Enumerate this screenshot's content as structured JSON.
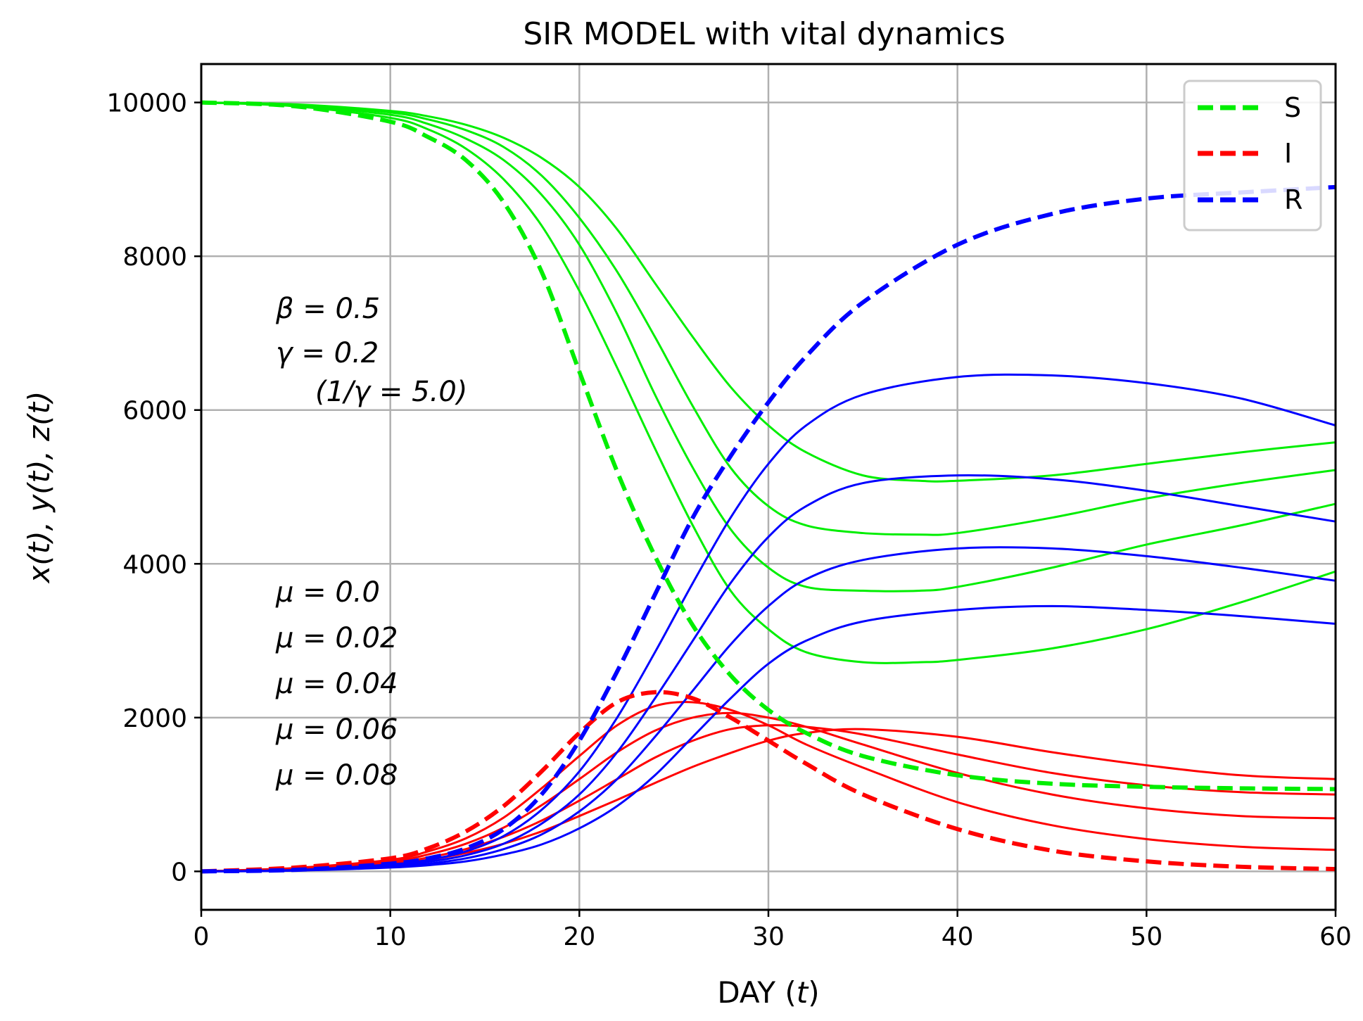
{
  "chart_data": {
    "type": "line",
    "title": "SIR MODEL with vital dynamics",
    "xlabel": "DAY (t)",
    "ylabel": "x(t), y(t), z(t)",
    "xlim": [
      0,
      60
    ],
    "ylim": [
      -500,
      10500
    ],
    "xticks": [
      0,
      10,
      20,
      30,
      40,
      50,
      60
    ],
    "yticks": [
      0,
      2000,
      4000,
      6000,
      8000,
      10000
    ],
    "grid": true,
    "legend": {
      "position": "top-right",
      "entries": [
        "S",
        "I",
        "R"
      ]
    },
    "colors": {
      "S": "#00ee00",
      "I": "#ff0000",
      "R": "#0000ff",
      "grid": "#b0b0b0"
    },
    "annotations": {
      "params": [
        "β = 0.5",
        "γ = 0.2",
        "(1/γ = 5.0)"
      ],
      "mu_values": [
        "μ = 0.0",
        "μ = 0.02",
        "μ = 0.04",
        "μ = 0.06",
        "μ = 0.08"
      ]
    },
    "series": [
      {
        "name": "S",
        "mu": 0.0,
        "style": "dashed",
        "color": "#00ee00",
        "x": [
          0,
          5,
          10,
          12,
          14,
          16,
          18,
          20,
          22,
          24,
          26,
          28,
          30,
          32,
          35,
          40,
          45,
          50,
          55,
          60
        ],
        "y": [
          10000,
          9950,
          9750,
          9550,
          9250,
          8700,
          7800,
          6500,
          5200,
          4100,
          3200,
          2550,
          2100,
          1800,
          1500,
          1250,
          1140,
          1100,
          1080,
          1070
        ]
      },
      {
        "name": "S",
        "mu": 0.02,
        "style": "solid",
        "color": "#00ee00",
        "x": [
          0,
          5,
          10,
          12,
          14,
          16,
          18,
          20,
          22,
          24,
          26,
          28,
          30,
          32,
          35,
          38,
          40,
          45,
          50,
          55,
          60
        ],
        "y": [
          10000,
          9950,
          9800,
          9650,
          9400,
          9000,
          8400,
          7550,
          6550,
          5500,
          4500,
          3650,
          3150,
          2850,
          2720,
          2720,
          2750,
          2900,
          3150,
          3500,
          3900
        ]
      },
      {
        "name": "S",
        "mu": 0.04,
        "style": "solid",
        "color": "#00ee00",
        "x": [
          0,
          5,
          10,
          12,
          14,
          16,
          18,
          20,
          22,
          24,
          26,
          28,
          30,
          32,
          35,
          38,
          40,
          45,
          50,
          55,
          60
        ],
        "y": [
          10000,
          9960,
          9840,
          9720,
          9530,
          9250,
          8800,
          8150,
          7250,
          6200,
          5250,
          4450,
          3950,
          3700,
          3650,
          3650,
          3700,
          3950,
          4250,
          4500,
          4780
        ]
      },
      {
        "name": "S",
        "mu": 0.06,
        "style": "solid",
        "color": "#00ee00",
        "x": [
          0,
          5,
          10,
          12,
          14,
          16,
          18,
          20,
          22,
          24,
          26,
          28,
          30,
          32,
          35,
          38,
          40,
          45,
          50,
          55,
          60
        ],
        "y": [
          10000,
          9970,
          9870,
          9780,
          9640,
          9420,
          9050,
          8500,
          7800,
          6950,
          6050,
          5250,
          4750,
          4500,
          4400,
          4380,
          4400,
          4600,
          4850,
          5050,
          5220
        ]
      },
      {
        "name": "S",
        "mu": 0.08,
        "style": "solid",
        "color": "#00ee00",
        "x": [
          0,
          5,
          10,
          12,
          14,
          16,
          18,
          20,
          22,
          24,
          26,
          28,
          30,
          32,
          35,
          38,
          40,
          45,
          50,
          55,
          60
        ],
        "y": [
          10000,
          9975,
          9890,
          9820,
          9710,
          9540,
          9280,
          8900,
          8350,
          7650,
          6950,
          6300,
          5800,
          5450,
          5150,
          5080,
          5080,
          5150,
          5300,
          5450,
          5580
        ]
      },
      {
        "name": "I",
        "mu": 0.0,
        "style": "dashed",
        "color": "#ff0000",
        "x": [
          0,
          5,
          10,
          12,
          14,
          16,
          18,
          20,
          22,
          24,
          26,
          28,
          30,
          32,
          35,
          40,
          45,
          50,
          55,
          60
        ],
        "y": [
          0,
          50,
          170,
          300,
          520,
          850,
          1300,
          1800,
          2200,
          2330,
          2250,
          2000,
          1700,
          1400,
          1000,
          550,
          270,
          130,
          60,
          30
        ]
      },
      {
        "name": "I",
        "mu": 0.02,
        "style": "solid",
        "color": "#ff0000",
        "x": [
          0,
          5,
          10,
          12,
          14,
          16,
          18,
          20,
          22,
          24,
          26,
          28,
          30,
          32,
          35,
          40,
          45,
          50,
          55,
          60
        ],
        "y": [
          0,
          45,
          150,
          260,
          430,
          700,
          1080,
          1500,
          1900,
          2150,
          2200,
          2100,
          1900,
          1650,
          1350,
          900,
          600,
          420,
          320,
          280
        ]
      },
      {
        "name": "I",
        "mu": 0.04,
        "style": "solid",
        "color": "#ff0000",
        "x": [
          0,
          5,
          10,
          12,
          14,
          16,
          18,
          20,
          22,
          24,
          26,
          28,
          30,
          32,
          35,
          40,
          45,
          50,
          55,
          60
        ],
        "y": [
          0,
          40,
          130,
          220,
          360,
          570,
          860,
          1200,
          1550,
          1830,
          2000,
          2060,
          2000,
          1880,
          1650,
          1280,
          1000,
          820,
          720,
          690
        ]
      },
      {
        "name": "I",
        "mu": 0.06,
        "style": "solid",
        "color": "#ff0000",
        "x": [
          0,
          5,
          10,
          12,
          14,
          16,
          18,
          20,
          22,
          24,
          26,
          28,
          30,
          32,
          35,
          40,
          45,
          50,
          55,
          60
        ],
        "y": [
          0,
          35,
          110,
          180,
          290,
          450,
          660,
          920,
          1200,
          1480,
          1700,
          1850,
          1900,
          1880,
          1780,
          1520,
          1280,
          1120,
          1030,
          1000
        ]
      },
      {
        "name": "I",
        "mu": 0.08,
        "style": "solid",
        "color": "#ff0000",
        "x": [
          0,
          5,
          10,
          12,
          14,
          16,
          18,
          20,
          22,
          24,
          26,
          28,
          30,
          32,
          35,
          40,
          45,
          50,
          55,
          60
        ],
        "y": [
          0,
          30,
          95,
          150,
          240,
          360,
          520,
          720,
          930,
          1150,
          1360,
          1540,
          1700,
          1800,
          1850,
          1750,
          1550,
          1380,
          1250,
          1200
        ]
      },
      {
        "name": "R",
        "mu": 0.0,
        "style": "dashed",
        "color": "#0000ff",
        "x": [
          0,
          5,
          10,
          12,
          14,
          16,
          18,
          20,
          22,
          24,
          26,
          28,
          30,
          32,
          35,
          40,
          45,
          50,
          55,
          60
        ],
        "y": [
          0,
          20,
          100,
          170,
          300,
          550,
          1000,
          1700,
          2600,
          3600,
          4600,
          5400,
          6100,
          6700,
          7400,
          8150,
          8550,
          8750,
          8830,
          8900
        ]
      },
      {
        "name": "R",
        "mu": 0.02,
        "style": "solid",
        "color": "#0000ff",
        "x": [
          0,
          5,
          10,
          12,
          14,
          16,
          18,
          20,
          22,
          24,
          26,
          28,
          30,
          32,
          35,
          40,
          45,
          50,
          55,
          60
        ],
        "y": [
          0,
          18,
          90,
          150,
          260,
          460,
          800,
          1300,
          2000,
          2850,
          3750,
          4600,
          5300,
          5800,
          6200,
          6430,
          6450,
          6350,
          6150,
          5800
        ]
      },
      {
        "name": "R",
        "mu": 0.04,
        "style": "solid",
        "color": "#0000ff",
        "x": [
          0,
          5,
          10,
          12,
          14,
          16,
          18,
          20,
          22,
          24,
          26,
          28,
          30,
          32,
          35,
          40,
          45,
          50,
          55,
          60
        ],
        "y": [
          0,
          15,
          75,
          125,
          210,
          360,
          620,
          1000,
          1550,
          2250,
          3000,
          3750,
          4350,
          4750,
          5050,
          5150,
          5100,
          4950,
          4750,
          4550
        ]
      },
      {
        "name": "R",
        "mu": 0.06,
        "style": "solid",
        "color": "#0000ff",
        "x": [
          0,
          5,
          10,
          12,
          14,
          16,
          18,
          20,
          22,
          24,
          26,
          28,
          30,
          32,
          35,
          40,
          45,
          50,
          55,
          60
        ],
        "y": [
          0,
          12,
          60,
          100,
          170,
          290,
          480,
          780,
          1200,
          1750,
          2350,
          2950,
          3450,
          3800,
          4050,
          4200,
          4200,
          4100,
          3950,
          3780
        ]
      },
      {
        "name": "R",
        "mu": 0.08,
        "style": "solid",
        "color": "#0000ff",
        "x": [
          0,
          5,
          10,
          12,
          14,
          16,
          18,
          20,
          22,
          24,
          26,
          28,
          30,
          32,
          35,
          40,
          45,
          50,
          55,
          60
        ],
        "y": [
          0,
          10,
          50,
          80,
          130,
          220,
          350,
          560,
          850,
          1250,
          1750,
          2250,
          2700,
          3000,
          3250,
          3400,
          3450,
          3400,
          3320,
          3220
        ]
      }
    ]
  }
}
